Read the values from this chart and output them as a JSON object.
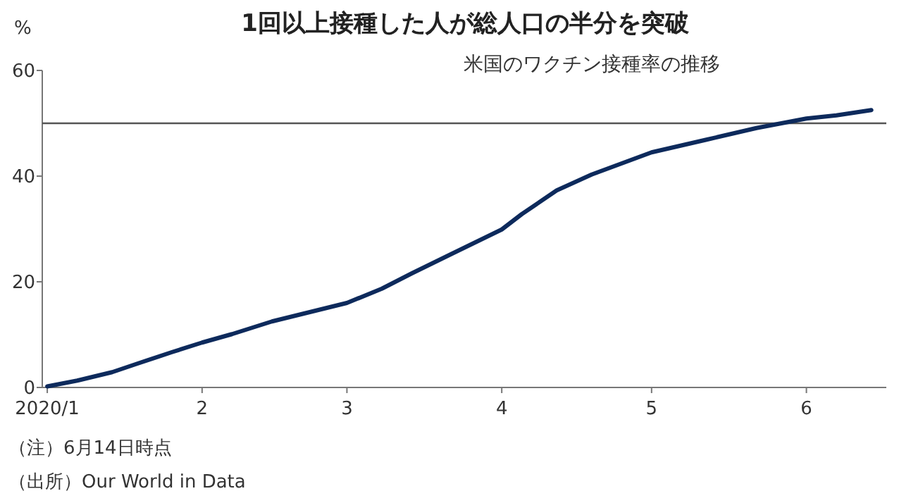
{
  "chart_data": {
    "type": "line",
    "title": "1回以上接種した人が総人口の半分を突破",
    "subtitle": "米国のワクチン接種率の推移",
    "ylabel": "%",
    "x": [
      "2020-01-01",
      "2020-01-07",
      "2020-01-14",
      "2020-01-19",
      "2020-01-26",
      "2020-02-01",
      "2020-02-07",
      "2020-02-15",
      "2020-02-21",
      "2020-03-01",
      "2020-03-08",
      "2020-03-14",
      "2020-03-22",
      "2020-04-01",
      "2020-04-05",
      "2020-04-12",
      "2020-04-19",
      "2020-05-01",
      "2020-05-12",
      "2020-05-22",
      "2020-06-01",
      "2020-06-07",
      "2020-06-14"
    ],
    "series": [
      {
        "color": "#0d2a5c",
        "values": [
          0.2,
          1.3,
          2.9,
          4.5,
          6.7,
          8.5,
          10.1,
          12.5,
          13.9,
          16.0,
          18.7,
          21.6,
          25.3,
          29.9,
          32.8,
          37.3,
          40.3,
          44.5,
          46.9,
          49.1,
          50.9,
          51.5,
          52.5
        ]
      }
    ],
    "xlim": [
      "2019-12-31",
      "2020-06-17"
    ],
    "xticks": [
      {
        "value": "2020-01-01",
        "label": "2020/1"
      },
      {
        "value": "2020-02-01",
        "label": "2"
      },
      {
        "value": "2020-03-01",
        "label": "3"
      },
      {
        "value": "2020-04-01",
        "label": "4"
      },
      {
        "value": "2020-05-01",
        "label": "5"
      },
      {
        "value": "2020-06-01",
        "label": "6"
      }
    ],
    "ylim": [
      0,
      60
    ],
    "yticks": [
      0,
      20,
      40,
      60
    ],
    "ref_lines": [
      {
        "axis": "y",
        "value": 50,
        "color": "#555555"
      }
    ],
    "grid": false,
    "marker": "none",
    "line_style": "solid",
    "annotations": [
      "（注）6月14日時点",
      "（出所）Our World in Data"
    ]
  }
}
